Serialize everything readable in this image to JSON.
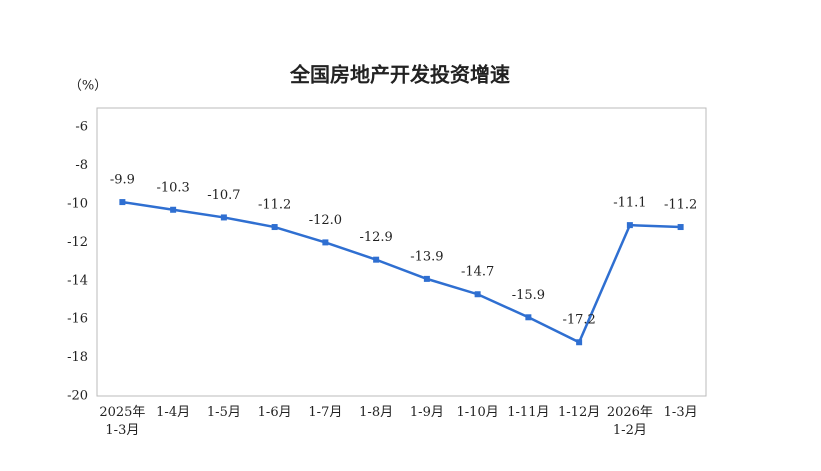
{
  "chart_data": {
    "type": "line",
    "title": "全国房地产开发投资增速",
    "y_label": "（%）",
    "categories": [
      "2025年\n1-3月",
      "1-4月",
      "1-5月",
      "1-6月",
      "1-7月",
      "1-8月",
      "1-9月",
      "1-10月",
      "1-11月",
      "1-12月",
      "2026年\n1-2月",
      "1-3月"
    ],
    "series": [
      {
        "name": "全国房地产开发投资增速",
        "color": "#2f6fd1",
        "values": [
          -9.9,
          -10.3,
          -10.7,
          -11.2,
          -12.0,
          -12.9,
          -13.9,
          -14.7,
          -15.9,
          -17.2,
          -11.1,
          -11.2
        ],
        "value_labels": [
          "-9.9",
          "-10.3",
          "-10.7",
          "-11.2",
          "-12.0",
          "-12.9",
          "-13.9",
          "-14.7",
          "-15.9",
          "-17.2",
          "-11.1",
          "-11.2"
        ]
      }
    ],
    "ylim": [
      -20,
      -5
    ],
    "yticks": [
      -6,
      -8,
      -10,
      -12,
      -14,
      -16,
      -18,
      -20
    ],
    "grid": false
  }
}
